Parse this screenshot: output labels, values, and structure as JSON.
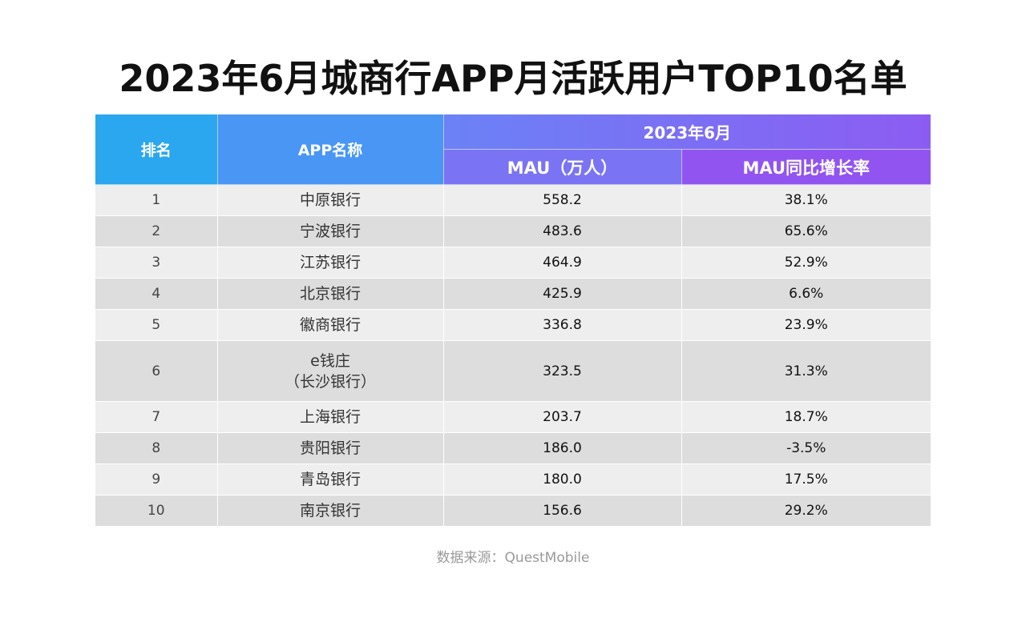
{
  "title": "2023年6月城商行APP月活跃用户TOP10名单",
  "header": {
    "rank": "排名",
    "app_name": "APP名称",
    "period": "2023年6月",
    "mau": "MAU（万人）",
    "yoy": "MAU同比增长率"
  },
  "colors": {
    "header_rank": "#2aa7ef",
    "header_app": "#4996f4",
    "header_mau": "#7a74f5",
    "header_yoy": "#9154f1",
    "row_odd": "#eeeeee",
    "row_even": "#dddddd"
  },
  "rows": [
    {
      "rank": "1",
      "name": "中原银行",
      "name2": "",
      "mau": "558.2",
      "yoy": "38.1%"
    },
    {
      "rank": "2",
      "name": "宁波银行",
      "name2": "",
      "mau": "483.6",
      "yoy": "65.6%"
    },
    {
      "rank": "3",
      "name": "江苏银行",
      "name2": "",
      "mau": "464.9",
      "yoy": "52.9%"
    },
    {
      "rank": "4",
      "name": "北京银行",
      "name2": "",
      "mau": "425.9",
      "yoy": "6.6%"
    },
    {
      "rank": "5",
      "name": "徽商银行",
      "name2": "",
      "mau": "336.8",
      "yoy": "23.9%"
    },
    {
      "rank": "6",
      "name": "e钱庄",
      "name2": "（长沙银行）",
      "mau": "323.5",
      "yoy": "31.3%"
    },
    {
      "rank": "7",
      "name": "上海银行",
      "name2": "",
      "mau": "203.7",
      "yoy": "18.7%"
    },
    {
      "rank": "8",
      "name": "贵阳银行",
      "name2": "",
      "mau": "186.0",
      "yoy": "-3.5%"
    },
    {
      "rank": "9",
      "name": "青岛银行",
      "name2": "",
      "mau": "180.0",
      "yoy": "17.5%"
    },
    {
      "rank": "10",
      "name": "南京银行",
      "name2": "",
      "mau": "156.6",
      "yoy": "29.2%"
    }
  ],
  "source": "数据来源：QuestMobile",
  "chart_data": {
    "type": "table",
    "title": "2023年6月城商行APP月活跃用户TOP10名单",
    "columns": [
      "排名",
      "APP名称",
      "MAU（万人）",
      "MAU同比增长率"
    ],
    "rows": [
      [
        "1",
        "中原银行",
        558.2,
        "38.1%"
      ],
      [
        "2",
        "宁波银行",
        483.6,
        "65.6%"
      ],
      [
        "3",
        "江苏银行",
        464.9,
        "52.9%"
      ],
      [
        "4",
        "北京银行",
        425.9,
        "6.6%"
      ],
      [
        "5",
        "徽商银行",
        336.8,
        "23.9%"
      ],
      [
        "6",
        "e钱庄（长沙银行）",
        323.5,
        "31.3%"
      ],
      [
        "7",
        "上海银行",
        203.7,
        "18.7%"
      ],
      [
        "8",
        "贵阳银行",
        186.0,
        "-3.5%"
      ],
      [
        "9",
        "青岛银行",
        180.0,
        "17.5%"
      ],
      [
        "10",
        "南京银行",
        156.6,
        "29.2%"
      ]
    ]
  }
}
